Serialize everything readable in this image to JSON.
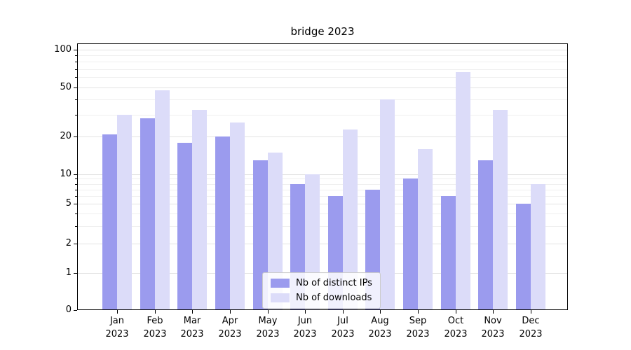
{
  "chart_data": {
    "type": "bar",
    "title": "bridge 2023",
    "categories": [
      "Jan",
      "Feb",
      "Mar",
      "Apr",
      "May",
      "Jun",
      "Jul",
      "Aug",
      "Sep",
      "Oct",
      "Nov",
      "Dec"
    ],
    "year_label": "2023",
    "series": [
      {
        "name": "Nb of distinct IPs",
        "color": "#9b9bee",
        "values": [
          21,
          28,
          18,
          20,
          13,
          8,
          6,
          7,
          9,
          6,
          13,
          5
        ]
      },
      {
        "name": "Nb of downloads",
        "color": "#dcdcf9",
        "values": [
          30,
          47,
          33,
          26,
          15,
          10,
          23,
          40,
          16,
          66,
          33,
          8
        ]
      }
    ],
    "yscale": "symlog",
    "yticks": [
      0,
      1,
      2,
      5,
      10,
      20,
      50,
      100
    ],
    "minor_yticks": [
      3,
      4,
      6,
      7,
      8,
      9,
      30,
      40,
      60,
      70,
      80,
      90
    ],
    "ylim": [
      0,
      112
    ],
    "grid": true,
    "legend_position": "lower center",
    "colors": {
      "major_grid": "#e2e2e2",
      "minor_grid": "#efefef",
      "axis": "#000000",
      "background": "#ffffff"
    }
  }
}
